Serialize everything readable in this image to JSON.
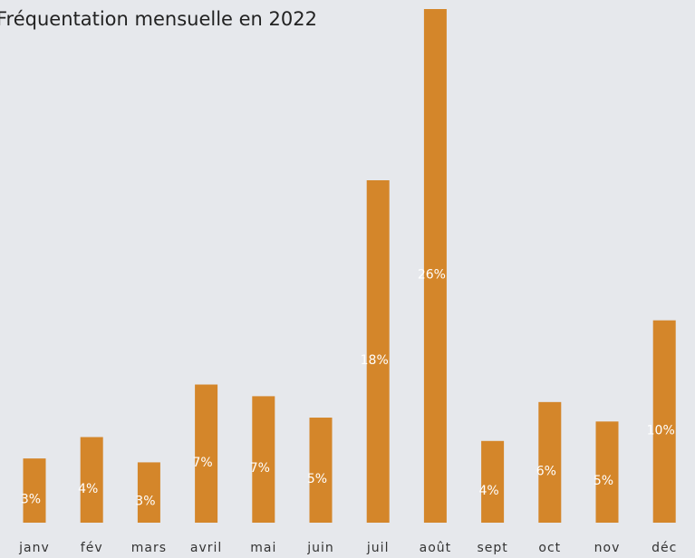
{
  "chart_data": {
    "type": "bar",
    "title": "Fréquentation mensuelle en 2022",
    "categories": [
      "janv",
      "fév",
      "mars",
      "avril",
      "mai",
      "juin",
      "juil",
      "août",
      "sept",
      "oct",
      "nov",
      "déc"
    ],
    "values": [
      3.3,
      4.4,
      3.1,
      7.1,
      6.5,
      5.4,
      17.6,
      26.4,
      4.2,
      6.2,
      5.2,
      10.4
    ],
    "value_labels": [
      "3%",
      "4%",
      "3%",
      "7%",
      "7%",
      "5%",
      "18%",
      "26%",
      "4%",
      "6%",
      "5%",
      "10%"
    ],
    "color": "#d4862a"
  }
}
